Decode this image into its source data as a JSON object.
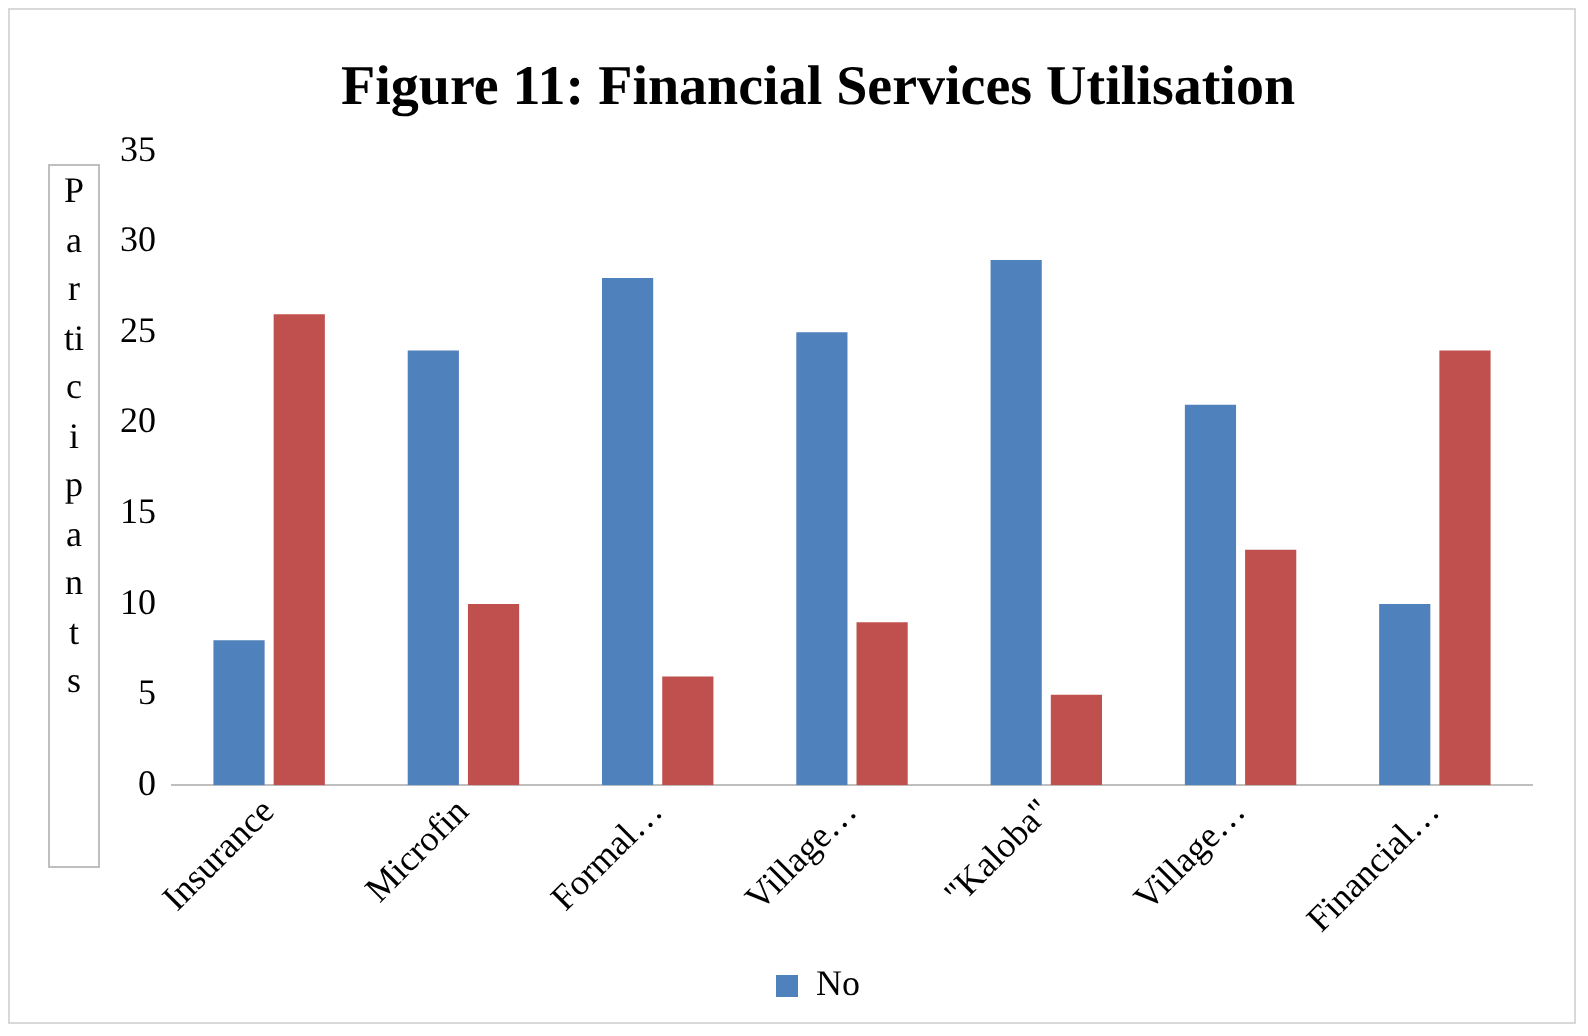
{
  "chart_data": {
    "type": "bar",
    "title": "Figure 11: Financial Services Utilisation",
    "ylabel": "Participants",
    "categories": [
      "Insurance",
      "Microfin",
      "Formal…",
      "Village…",
      "\"Kaloba\"",
      "Village…",
      "Financial…"
    ],
    "series": [
      {
        "name": "No",
        "color": "#4f81bd",
        "values": [
          8,
          24,
          28,
          25,
          29,
          21,
          10
        ]
      },
      {
        "color": "#c0504d",
        "values": [
          26,
          10,
          6,
          9,
          5,
          13,
          24
        ]
      }
    ],
    "ylim": [
      0,
      35
    ],
    "yticks": [
      0,
      5,
      10,
      15,
      20,
      25,
      30,
      35
    ],
    "grid": false,
    "legend": "bottom"
  }
}
